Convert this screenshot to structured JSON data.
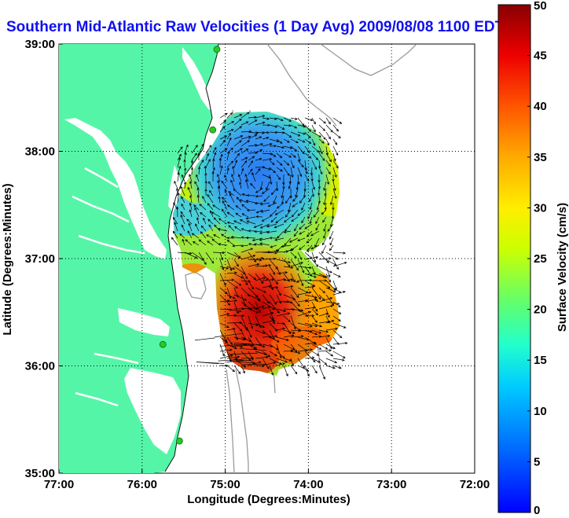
{
  "title": "Southern Mid-Atlantic Raw Velocities (1 Day Avg) 2009/08/08 1100 EDT",
  "map": {
    "x_axis_label": "Longitude (Degrees:Minutes)",
    "y_axis_label": "Latitude (Degrees:Minutes)",
    "x_ticks": [
      "77:00",
      "76:00",
      "75:00",
      "74:00",
      "73:00",
      "72:00"
    ],
    "y_ticks": [
      "39:00",
      "38:00",
      "37:00",
      "36:00",
      "35:00"
    ],
    "lon_range": [
      -77,
      -72
    ],
    "lat_range": [
      35,
      39
    ],
    "grid": true
  },
  "colorbar": {
    "label": "Surface Velocity (cm/s)",
    "ticks": [
      "50",
      "45",
      "40",
      "35",
      "30",
      "25",
      "20",
      "15",
      "10",
      "5",
      "0"
    ],
    "range": [
      0,
      50
    ],
    "colormap": "jet"
  },
  "colors": {
    "land": "#55f5a8",
    "title": "#1010ee",
    "station": "#22cc22",
    "bathymetry": "#9a9a9a"
  },
  "stations": [
    {
      "lon": -75.1,
      "lat": 38.95
    },
    {
      "lon": -75.15,
      "lat": 38.2
    },
    {
      "lon": -75.75,
      "lat": 36.2
    },
    {
      "lon": -75.55,
      "lat": 35.3
    }
  ]
}
